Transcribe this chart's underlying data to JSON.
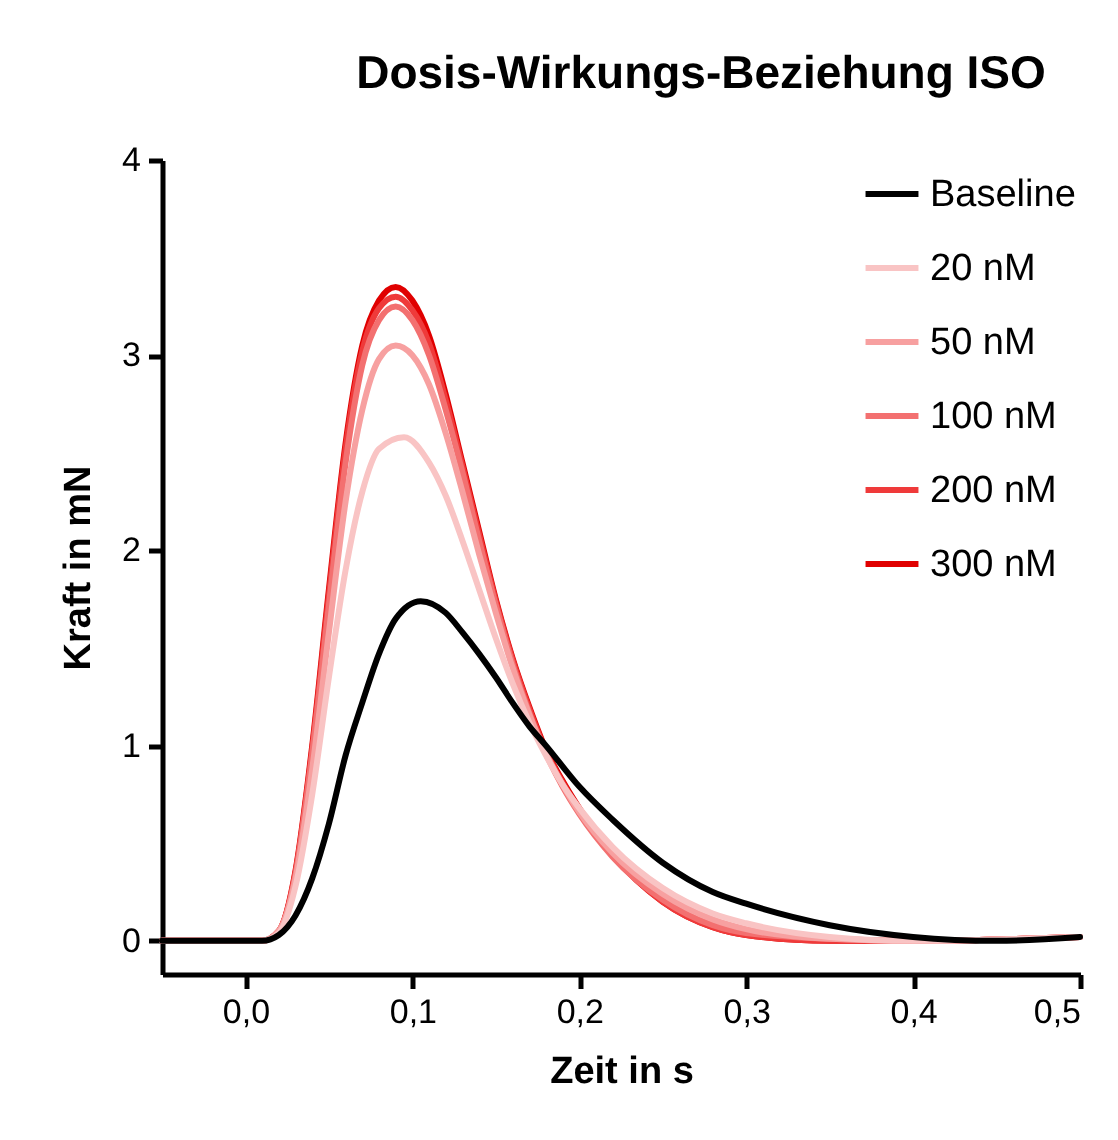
{
  "chart_data": {
    "type": "line",
    "title": "Dosis-Wirkungs-Beziehung ISO",
    "xlabel": "Zeit in s",
    "ylabel": "Kraft in mN",
    "xlim": [
      -0.05,
      0.5
    ],
    "xticks": [
      {
        "value": 0,
        "label": "0,0"
      },
      {
        "value": 0.1,
        "label": "0,1"
      },
      {
        "value": 0.2,
        "label": "0,2"
      },
      {
        "value": 0.3,
        "label": "0,3"
      },
      {
        "value": 0.4,
        "label": "0,4"
      },
      {
        "value": 0.5,
        "label": "0,5"
      }
    ],
    "ylim": [
      -0.17,
      4
    ],
    "yticks": [
      0,
      1,
      2,
      3,
      4
    ],
    "grid": false,
    "legend": "top right",
    "line_style": "solid",
    "marker": "none",
    "series": [
      {
        "name": "Baseline",
        "color": "#000000",
        "x": [
          -0.05,
          0.01,
          0.02,
          0.03,
          0.04,
          0.05,
          0.06,
          0.07,
          0.08,
          0.09,
          0.105,
          0.12,
          0.13,
          0.14,
          0.15,
          0.16,
          0.17,
          0.18,
          0.2,
          0.22,
          0.25,
          0.28,
          0.3,
          0.35,
          0.4,
          0.45,
          0.5
        ],
        "values": [
          0,
          0,
          0.03,
          0.13,
          0.32,
          0.6,
          0.95,
          1.22,
          1.47,
          1.65,
          1.74,
          1.68,
          1.58,
          1.47,
          1.35,
          1.22,
          1.1,
          1.0,
          0.79,
          0.62,
          0.4,
          0.25,
          0.19,
          0.08,
          0.02,
          0,
          0.02
        ]
      },
      {
        "name": "20 nM",
        "color": "#f9c4c4",
        "x": [
          -0.05,
          0.01,
          0.02,
          0.03,
          0.04,
          0.05,
          0.06,
          0.07,
          0.08,
          0.095,
          0.11,
          0.12,
          0.13,
          0.14,
          0.15,
          0.16,
          0.17,
          0.18,
          0.19,
          0.2,
          0.22,
          0.25,
          0.28,
          0.3,
          0.35,
          0.4,
          0.5
        ],
        "values": [
          0,
          0,
          0.04,
          0.28,
          0.75,
          1.35,
          1.9,
          2.3,
          2.52,
          2.58,
          2.45,
          2.28,
          2.05,
          1.8,
          1.55,
          1.32,
          1.12,
          0.95,
          0.8,
          0.68,
          0.48,
          0.27,
          0.14,
          0.09,
          0.02,
          0,
          0.02
        ]
      },
      {
        "name": "50 nM",
        "color": "#f7a0a0",
        "x": [
          -0.05,
          0.01,
          0.02,
          0.03,
          0.04,
          0.05,
          0.06,
          0.07,
          0.08,
          0.09,
          0.1,
          0.11,
          0.12,
          0.13,
          0.14,
          0.15,
          0.16,
          0.17,
          0.18,
          0.19,
          0.2,
          0.22,
          0.25,
          0.28,
          0.3,
          0.35,
          0.4,
          0.5
        ],
        "values": [
          0,
          0,
          0.05,
          0.32,
          0.88,
          1.58,
          2.25,
          2.72,
          2.98,
          3.05,
          3.0,
          2.85,
          2.6,
          2.3,
          1.98,
          1.68,
          1.4,
          1.16,
          0.96,
          0.8,
          0.66,
          0.45,
          0.24,
          0.11,
          0.06,
          0.01,
          0,
          0.02
        ]
      },
      {
        "name": "100 nM",
        "color": "#f37070",
        "x": [
          -0.05,
          0.01,
          0.02,
          0.03,
          0.04,
          0.05,
          0.06,
          0.07,
          0.08,
          0.09,
          0.1,
          0.11,
          0.12,
          0.13,
          0.14,
          0.15,
          0.16,
          0.17,
          0.18,
          0.19,
          0.2,
          0.22,
          0.25,
          0.28,
          0.3,
          0.35,
          0.4,
          0.5
        ],
        "values": [
          0,
          0,
          0.05,
          0.34,
          0.96,
          1.72,
          2.45,
          2.95,
          3.18,
          3.25,
          3.18,
          3.0,
          2.72,
          2.4,
          2.05,
          1.72,
          1.42,
          1.17,
          0.96,
          0.79,
          0.65,
          0.43,
          0.21,
          0.08,
          0.04,
          0.01,
          0,
          0.02
        ]
      },
      {
        "name": "200 nM",
        "color": "#ef3a3a",
        "x": [
          -0.05,
          0.01,
          0.02,
          0.03,
          0.04,
          0.05,
          0.06,
          0.07,
          0.08,
          0.09,
          0.1,
          0.11,
          0.12,
          0.13,
          0.14,
          0.15,
          0.16,
          0.17,
          0.18,
          0.19,
          0.2,
          0.22,
          0.25,
          0.28,
          0.3,
          0.35,
          0.4,
          0.5
        ],
        "values": [
          0,
          0,
          0.05,
          0.35,
          0.98,
          1.77,
          2.52,
          3.02,
          3.24,
          3.3,
          3.23,
          3.06,
          2.77,
          2.43,
          2.08,
          1.74,
          1.44,
          1.19,
          0.97,
          0.81,
          0.67,
          0.44,
          0.2,
          0.07,
          0.03,
          0.0,
          0,
          0.02
        ]
      },
      {
        "name": "300 nM",
        "color": "#e00000",
        "x": [
          -0.05,
          0.01,
          0.02,
          0.03,
          0.04,
          0.05,
          0.06,
          0.07,
          0.08,
          0.09,
          0.1,
          0.11,
          0.12,
          0.13,
          0.14,
          0.15,
          0.16,
          0.17,
          0.18,
          0.19,
          0.2,
          0.22,
          0.25,
          0.28,
          0.3,
          0.35,
          0.4,
          0.5
        ],
        "values": [
          0,
          0,
          0.05,
          0.36,
          1.0,
          1.8,
          2.55,
          3.05,
          3.28,
          3.35,
          3.28,
          3.1,
          2.8,
          2.45,
          2.1,
          1.75,
          1.45,
          1.2,
          0.98,
          0.82,
          0.68,
          0.44,
          0.2,
          0.07,
          0.03,
          0.0,
          0,
          0.02
        ]
      }
    ]
  }
}
